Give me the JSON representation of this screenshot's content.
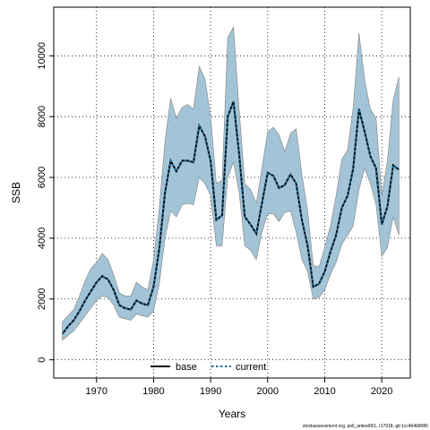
{
  "chart_data": {
    "type": "area",
    "xlabel": "Years",
    "ylabel": "SSB",
    "xlim": [
      1962.5,
      2025
    ],
    "ylim": [
      -600,
      11600
    ],
    "x_ticks": [
      1970,
      1980,
      1990,
      2000,
      2010,
      2020
    ],
    "y_ticks": [
      0,
      2000,
      4000,
      6000,
      8000,
      10000
    ],
    "grid": true,
    "legend_position": "bottom-center",
    "band_color": "#a3c4d6",
    "band_edge_color": "#808080",
    "x": [
      1964,
      1965,
      1966,
      1967,
      1968,
      1969,
      1970,
      1971,
      1972,
      1973,
      1974,
      1975,
      1976,
      1977,
      1978,
      1979,
      1980,
      1981,
      1982,
      1983,
      1984,
      1985,
      1986,
      1987,
      1988,
      1989,
      1990,
      1991,
      1992,
      1993,
      1994,
      1995,
      1996,
      1997,
      1998,
      1999,
      2000,
      2001,
      2002,
      2003,
      2004,
      2005,
      2006,
      2007,
      2008,
      2009,
      2010,
      2011,
      2012,
      2013,
      2014,
      2015,
      2016,
      2017,
      2018,
      2019,
      2020,
      2021,
      2022,
      2023
    ],
    "band_lower": [
      650,
      800,
      950,
      1200,
      1450,
      1700,
      1950,
      2100,
      2050,
      1800,
      1400,
      1350,
      1300,
      1500,
      1450,
      1400,
      1600,
      2500,
      4000,
      4900,
      4700,
      5100,
      5150,
      5100,
      6000,
      5800,
      5400,
      3750,
      3750,
      6000,
      6500,
      5500,
      3750,
      3600,
      3300,
      4200,
      4800,
      4800,
      4550,
      4850,
      4900,
      4200,
      3300,
      2900,
      2000,
      2050,
      2300,
      2800,
      3200,
      3800,
      4100,
      4400,
      5600,
      6300,
      5800,
      5100,
      3400,
      3700,
      4700,
      4100
    ],
    "band_upper": [
      1250,
      1450,
      1650,
      2100,
      2600,
      3000,
      3200,
      3500,
      3300,
      2800,
      2200,
      2100,
      2100,
      2550,
      2400,
      2300,
      3300,
      5000,
      7200,
      8600,
      7950,
      8300,
      8400,
      8250,
      9650,
      9250,
      8000,
      5800,
      5900,
      10600,
      10950,
      8200,
      5800,
      5600,
      5150,
      6300,
      7500,
      7650,
      7400,
      6850,
      7450,
      7600,
      6100,
      4900,
      3100,
      3050,
      3700,
      4400,
      5400,
      6600,
      6900,
      8300,
      10750,
      9200,
      8250,
      7950,
      5400,
      6550,
      8550,
      9300
    ],
    "series": [
      {
        "name": "base",
        "values": [
          850,
          1100,
          1300,
          1600,
          1950,
          2250,
          2550,
          2750,
          2650,
          2300,
          1800,
          1700,
          1650,
          1950,
          1850,
          1800,
          2400,
          3650,
          5500,
          6550,
          6200,
          6550,
          6550,
          6500,
          7700,
          7350,
          6550,
          4600,
          4750,
          8000,
          8500,
          6750,
          4700,
          4450,
          4150,
          5150,
          6150,
          6050,
          5650,
          5750,
          6100,
          5800,
          4600,
          3750,
          2400,
          2500,
          2900,
          3550,
          4100,
          5000,
          5400,
          6300,
          8250,
          7500,
          6700,
          6300,
          4450,
          5050,
          6400,
          6250
        ]
      },
      {
        "name": "current",
        "values": [
          850,
          1100,
          1300,
          1600,
          1950,
          2250,
          2550,
          2750,
          2650,
          2300,
          1800,
          1700,
          1650,
          1950,
          1850,
          1800,
          2400,
          3650,
          5500,
          6550,
          6200,
          6550,
          6550,
          6500,
          7700,
          7350,
          6550,
          4600,
          4750,
          8000,
          8500,
          6750,
          4700,
          4450,
          4150,
          5150,
          6150,
          6050,
          5650,
          5750,
          6100,
          5800,
          4600,
          3750,
          2400,
          2500,
          2900,
          3550,
          4100,
          5000,
          5400,
          6300,
          8250,
          7500,
          6700,
          6300,
          4450,
          5050,
          6400,
          6250
        ]
      }
    ]
  },
  "footnote": "stockassessment.org, poll_antest001, r17918, git:1cc464b8086"
}
